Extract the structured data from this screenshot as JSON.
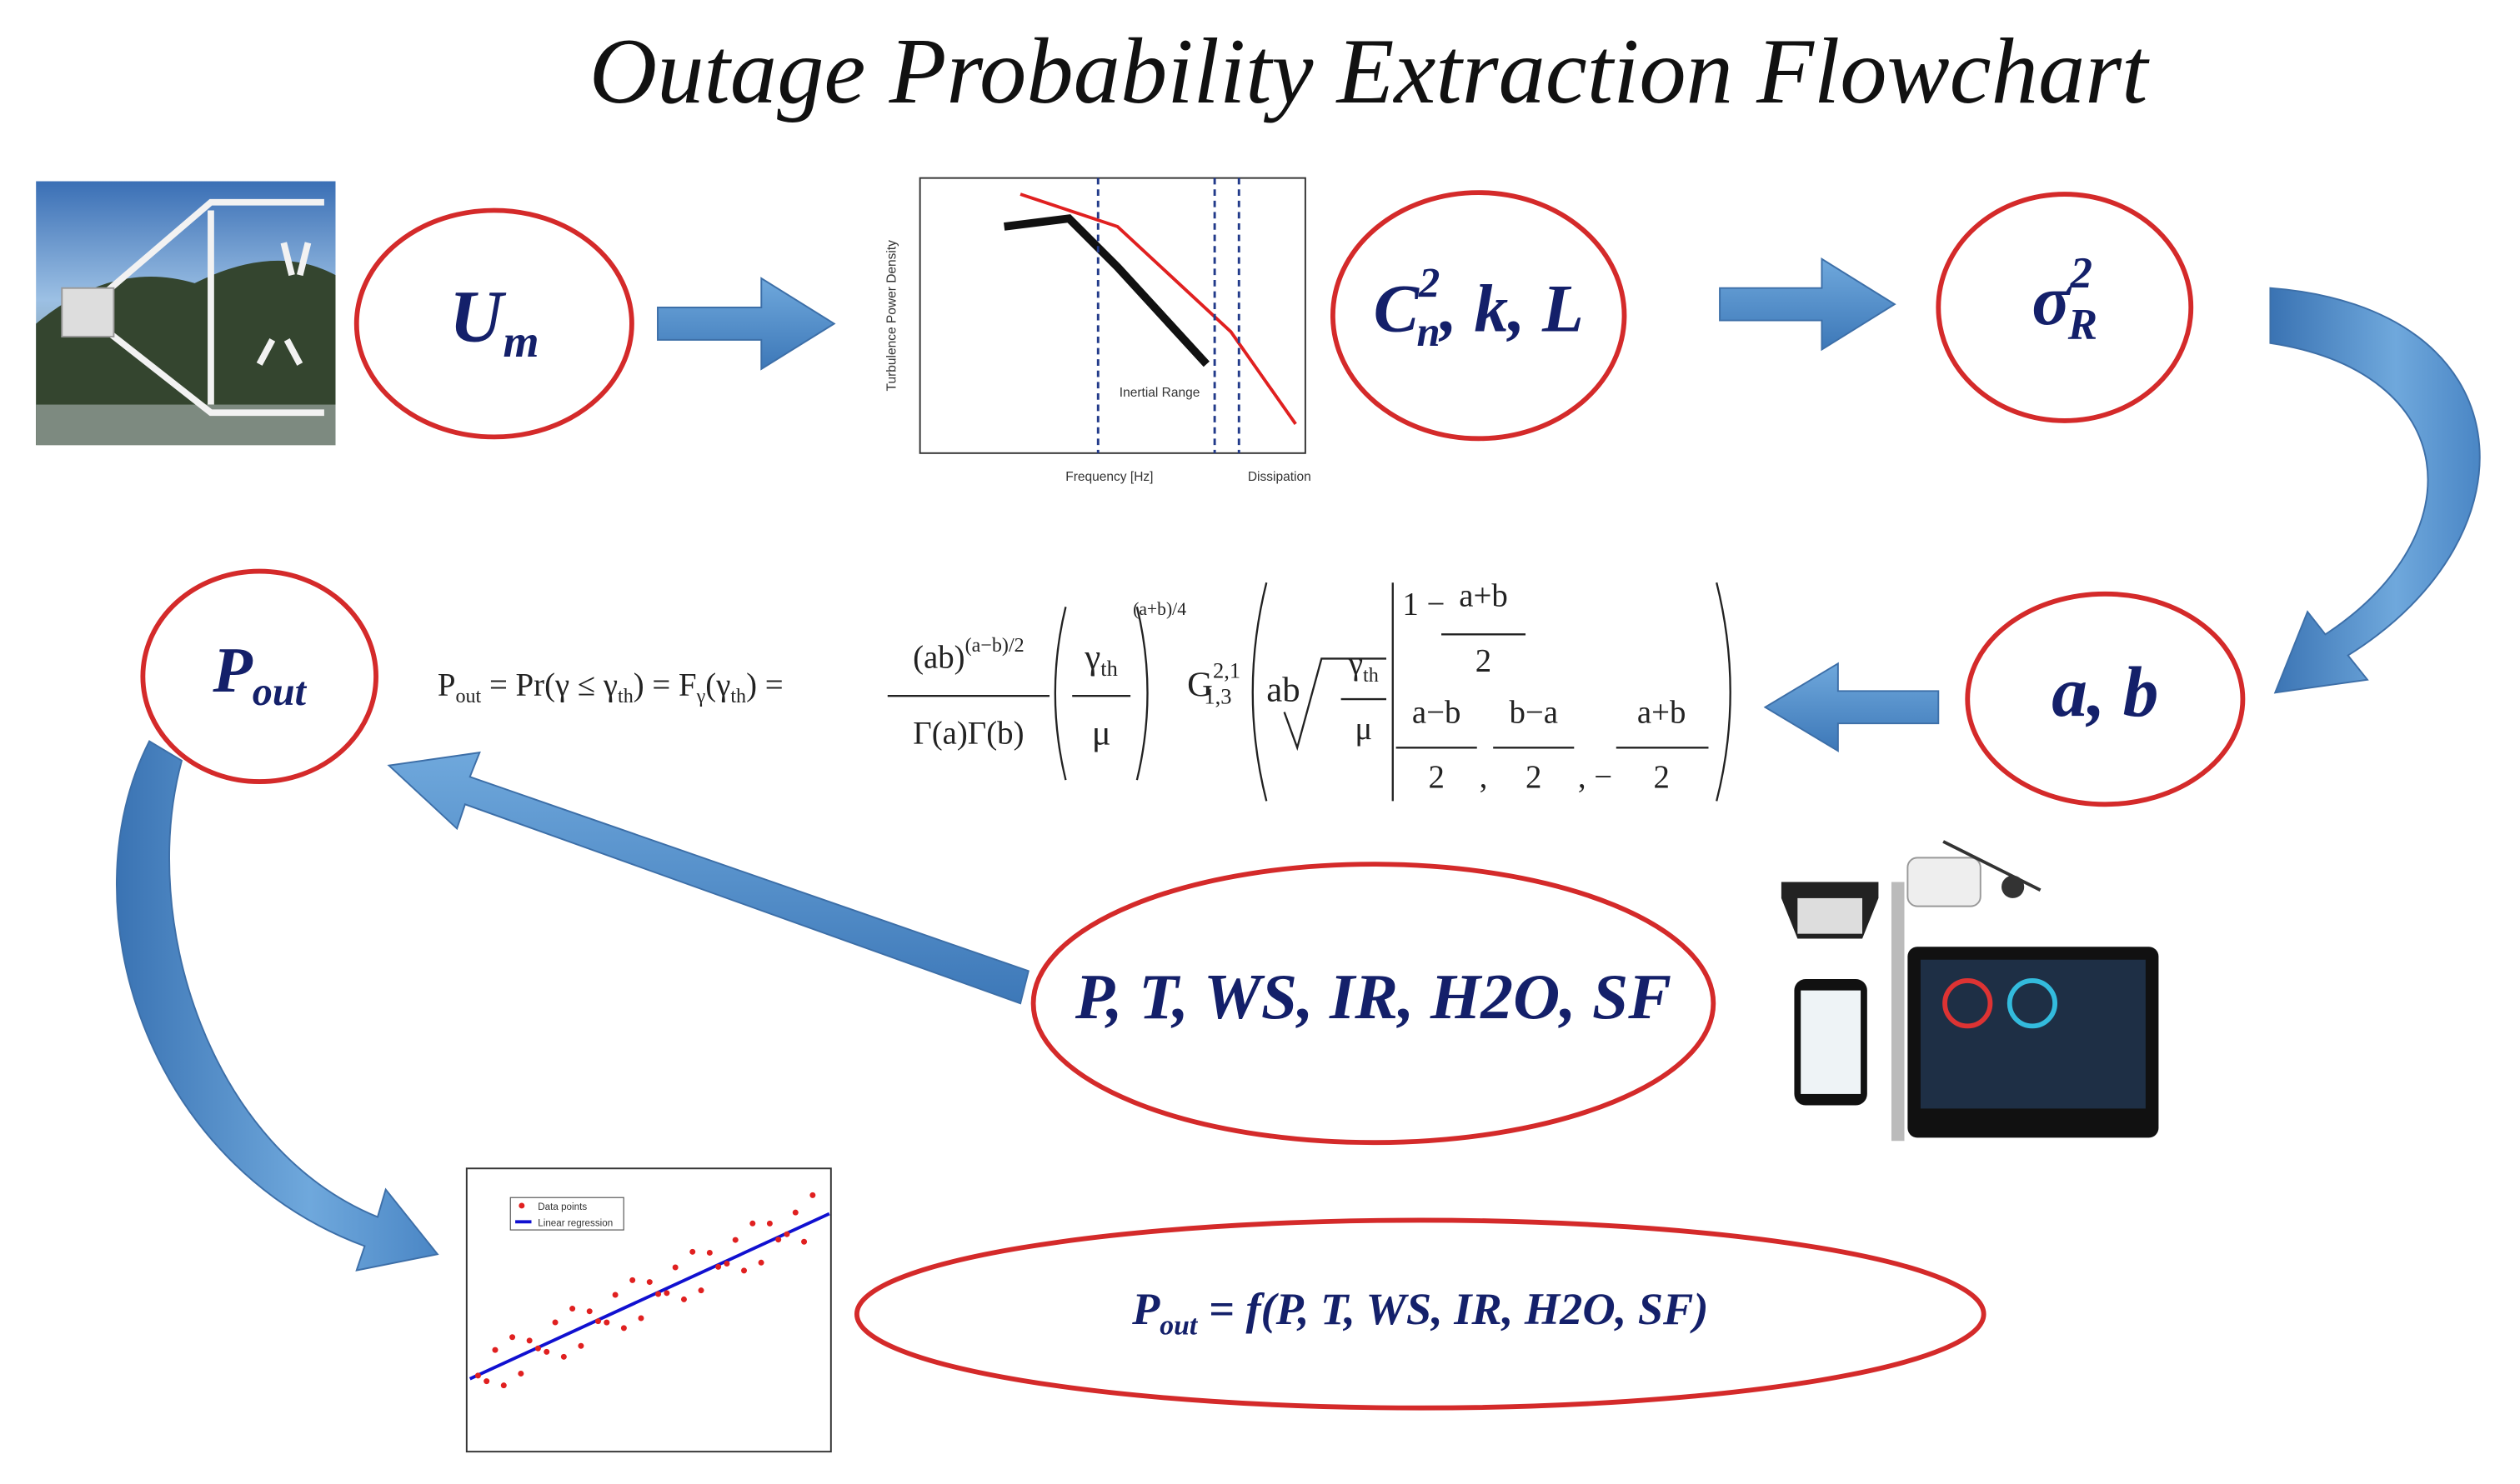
{
  "title": "Outage Probability Extraction Flowchart",
  "nodes": [
    {
      "parts": [
        {
          "text": "U"
        },
        {
          "sub": "m"
        }
      ]
    },
    {
      "parts": [
        {
          "text": "C"
        },
        {
          "sup": "2",
          "sub": "n"
        },
        {
          "text": ", k, L"
        }
      ]
    },
    {
      "parts": [
        {
          "text": "σ"
        },
        {
          "sup": "2",
          "sub": "R"
        }
      ]
    },
    {
      "parts": [
        {
          "text": "a, b"
        }
      ]
    },
    {
      "parts": [
        {
          "text": "P"
        },
        {
          "sub": "out"
        }
      ]
    },
    {
      "parts": [
        {
          "text": "P, T, WS, IR, H2O, SF"
        }
      ]
    },
    {
      "parts": [
        {
          "text": "P"
        },
        {
          "sub": "out"
        },
        {
          "text": " = f(P, T, WS, IR, H2O, SF)"
        }
      ]
    }
  ],
  "formula": [
    {
      "parts": [
        {
          "text": "P"
        },
        {
          "sub": "out"
        },
        {
          "text": " = Pr(γ ≤ γ"
        },
        {
          "sub": "th"
        },
        {
          "text": ") = F"
        },
        {
          "sub": "γ"
        },
        {
          "text": "(γ"
        },
        {
          "sub": "th"
        },
        {
          "text": ") ="
        }
      ]
    },
    {
      "parts": [
        {
          "text": "(ab)"
        },
        {
          "sup": "(a−b)/2"
        }
      ]
    },
    {
      "parts": [
        {
          "text": "Γ(a)Γ(b)"
        }
      ]
    },
    {
      "parts": [
        {
          "text": "γ"
        },
        {
          "sub": "th"
        }
      ]
    },
    {
      "parts": [
        {
          "text": "μ"
        }
      ]
    },
    {
      "parts": [
        {
          "sup": "(a+b)/4"
        }
      ]
    },
    {
      "parts": [
        {
          "text": "G"
        },
        {
          "sup": "2,1",
          "sub": "1,3"
        }
      ]
    },
    {
      "parts": [
        {
          "text": "ab"
        }
      ]
    },
    {
      "parts": [
        {
          "text": "γ"
        },
        {
          "sub": "th"
        }
      ]
    },
    {
      "parts": [
        {
          "text": "μ"
        }
      ]
    },
    {
      "parts": [
        {
          "text": "1 −"
        }
      ]
    },
    {
      "parts": [
        {
          "text": "a+b"
        }
      ]
    },
    {
      "parts": [
        {
          "text": "2"
        }
      ]
    },
    {
      "parts": [
        {
          "text": "a−b"
        }
      ]
    },
    {
      "parts": [
        {
          "text": "2"
        }
      ]
    },
    {
      "parts": [
        {
          "text": ","
        }
      ]
    },
    {
      "parts": [
        {
          "text": "b−a"
        }
      ]
    },
    {
      "parts": [
        {
          "text": "2"
        }
      ]
    },
    {
      "parts": [
        {
          "text": ", −"
        }
      ]
    },
    {
      "parts": [
        {
          "text": "a+b"
        }
      ]
    },
    {
      "parts": [
        {
          "text": "2"
        }
      ]
    }
  ],
  "spectrum_plot": {
    "x_label": "Frequency [Hz]",
    "y_label": "Turbulence Power Density",
    "annotations": [
      "Inertial Range",
      "Dissipation"
    ]
  },
  "scatter_plot": {
    "legend": [
      "Data points",
      "Linear regression"
    ]
  }
}
